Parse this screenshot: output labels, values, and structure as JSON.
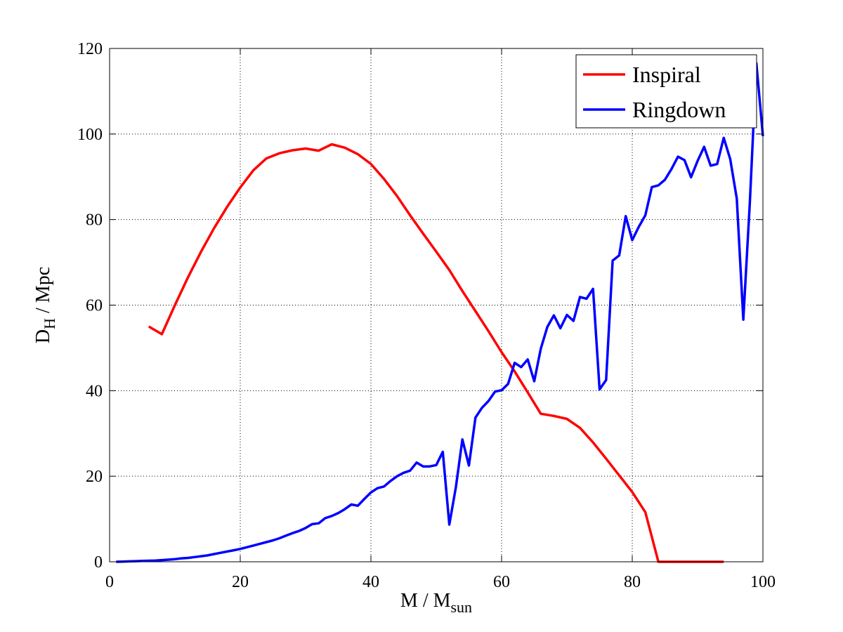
{
  "chart_data": {
    "type": "line",
    "title": "",
    "xlabel": {
      "main": "M / M",
      "sub": "sun"
    },
    "ylabel": {
      "main": "D",
      "sub": "H",
      "rest": " / Mpc"
    },
    "xlim": [
      0,
      100
    ],
    "ylim": [
      0,
      120
    ],
    "xticks": [
      0,
      20,
      40,
      60,
      80,
      100
    ],
    "yticks": [
      0,
      20,
      40,
      60,
      80,
      100,
      120
    ],
    "grid": true,
    "legend_position": "top-right",
    "series": [
      {
        "name": "Inspiral",
        "color": "#ff0000",
        "x": [
          6,
          8,
          10,
          12,
          14,
          16,
          18,
          20,
          22,
          24,
          26,
          28,
          30,
          32,
          34,
          36,
          38,
          40,
          42,
          44,
          46,
          48,
          50,
          52,
          54,
          56,
          58,
          60,
          62,
          64,
          66,
          68,
          70,
          72,
          74,
          76,
          78,
          80,
          82,
          84,
          86,
          88,
          90,
          92,
          94
        ],
        "y": [
          55,
          53.2,
          60,
          66.5,
          72.5,
          78,
          83,
          87.5,
          91.5,
          94.3,
          95.5,
          96.2,
          96.6,
          96.1,
          97.6,
          96.8,
          95.3,
          93,
          89.5,
          85.5,
          81,
          76.7,
          72.5,
          68.2,
          63.3,
          58.6,
          53.9,
          49,
          44.5,
          39.6,
          34.6,
          34.1,
          33.4,
          31.3,
          27.9,
          24.1,
          20.2,
          16.3,
          11.6,
          0,
          0,
          0,
          0,
          0,
          0
        ]
      },
      {
        "name": "Ringdown",
        "color": "#0000ff",
        "x": [
          1,
          2,
          3,
          4,
          5,
          6,
          7,
          8,
          9,
          10,
          11,
          12,
          13,
          14,
          15,
          16,
          17,
          18,
          19,
          20,
          21,
          22,
          23,
          24,
          25,
          26,
          27,
          28,
          29,
          30,
          31,
          32,
          33,
          34,
          35,
          36,
          37,
          38,
          39,
          40,
          41,
          42,
          43,
          44,
          45,
          46,
          47,
          48,
          49,
          50,
          51,
          52,
          53,
          54,
          55,
          56,
          57,
          58,
          59,
          60,
          61,
          62,
          63,
          64,
          65,
          66,
          67,
          68,
          69,
          70,
          71,
          72,
          73,
          74,
          75,
          76,
          77,
          78,
          79,
          80,
          81,
          82,
          83,
          84,
          85,
          86,
          87,
          88,
          89,
          90,
          91,
          92,
          93,
          94,
          95,
          96,
          97,
          98,
          99,
          100
        ],
        "y": [
          0,
          0.05,
          0.1,
          0.15,
          0.2,
          0.25,
          0.3,
          0.4,
          0.5,
          0.6,
          0.8,
          0.9,
          1.1,
          1.3,
          1.5,
          1.8,
          2.1,
          2.4,
          2.7,
          3,
          3.4,
          3.8,
          4.2,
          4.6,
          5,
          5.5,
          6.1,
          6.7,
          7.2,
          7.9,
          8.8,
          9,
          10.2,
          10.7,
          11.4,
          12.3,
          13.4,
          13.1,
          14.7,
          16.2,
          17.2,
          17.6,
          18.9,
          20,
          20.8,
          21.3,
          23.2,
          22.3,
          22.3,
          22.6,
          25.7,
          8.7,
          17.4,
          28.6,
          22.5,
          33.7,
          36,
          37.6,
          39.8,
          40.1,
          41.6,
          46.5,
          45.5,
          47.3,
          42.2,
          49.8,
          54.9,
          57.6,
          54.6,
          57.7,
          56.3,
          61.9,
          61.5,
          63.8,
          40.3,
          42.5,
          70.4,
          71.6,
          80.8,
          75.2,
          78.3,
          81,
          87.6,
          88,
          89.3,
          91.8,
          94.7,
          93.9,
          89.9,
          93.7,
          97,
          92.6,
          93,
          99.1,
          94.1,
          84.9,
          56.6,
          84,
          116.5,
          99.5
        ]
      }
    ]
  }
}
